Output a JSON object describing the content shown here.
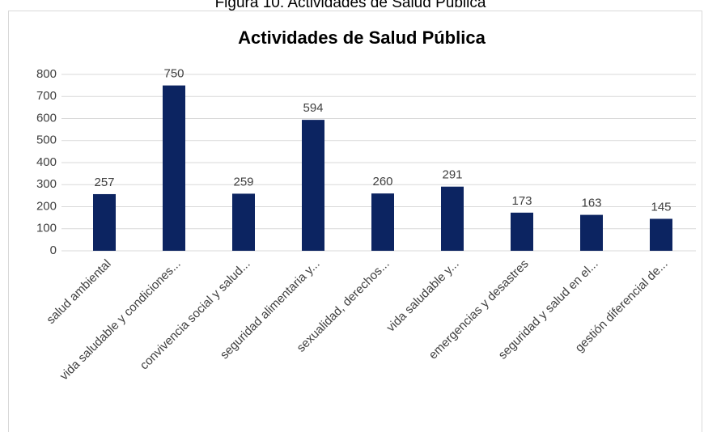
{
  "caption": "Figura 10. Actividades de Salud Pública",
  "chart_data": {
    "type": "bar",
    "title": "Actividades de Salud Pública",
    "categories": [
      "salud ambiental",
      "vida saludable y condiciones...",
      "convivencia social y salud...",
      "seguridad alimentaria y...",
      "sexualidad, derechos...",
      "vida saludable y...",
      "emergencias y desastres",
      "seguridad y salud en el...",
      "gestión diferencial de..."
    ],
    "values": [
      257,
      750,
      259,
      594,
      260,
      291,
      173,
      163,
      145
    ],
    "color": "#0c2461",
    "ylim": [
      0,
      800
    ],
    "yticks": [
      0,
      100,
      200,
      300,
      400,
      500,
      600,
      700,
      800
    ],
    "grid": true
  }
}
